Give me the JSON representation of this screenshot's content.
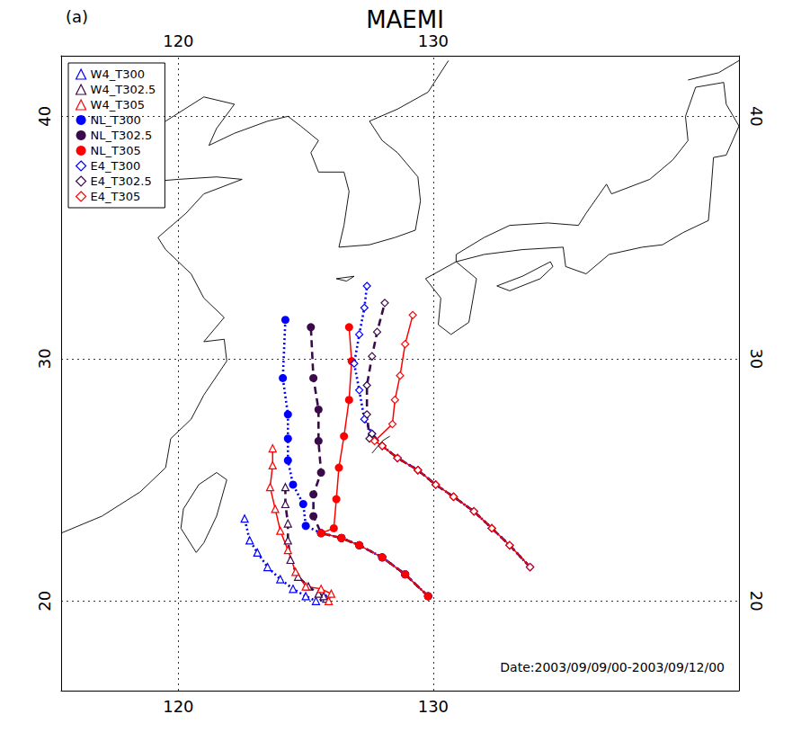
{
  "chart_data": {
    "type": "line",
    "title": "MAEMI",
    "subtitle": "(a)",
    "annotation": "Date:2003/09/09/00-2003/09/12/00",
    "xlim": [
      115.4,
      142
    ],
    "ylim": [
      16.3,
      42.5
    ],
    "xticks": [
      120,
      130
    ],
    "yticks": [
      20,
      30,
      40
    ],
    "grid": true,
    "legend": "upper left",
    "coastlines": [
      [
        [
          120.1,
          23.0
        ],
        [
          120.7,
          22.0
        ],
        [
          121.0,
          22.4
        ],
        [
          121.5,
          23.5
        ],
        [
          121.9,
          25.0
        ],
        [
          121.5,
          25.3
        ],
        [
          120.8,
          24.8
        ],
        [
          120.2,
          23.8
        ],
        [
          120.1,
          23.0
        ]
      ],
      [
        [
          115.4,
          22.8
        ],
        [
          117.0,
          23.5
        ],
        [
          118.5,
          24.5
        ],
        [
          119.5,
          25.5
        ],
        [
          119.7,
          26.7
        ],
        [
          120.5,
          27.5
        ],
        [
          121.0,
          28.5
        ],
        [
          121.9,
          29.9
        ],
        [
          121.8,
          30.8
        ],
        [
          121.0,
          30.7
        ],
        [
          121.8,
          31.7
        ],
        [
          121.0,
          32.5
        ],
        [
          120.5,
          33.5
        ],
        [
          119.5,
          34.5
        ],
        [
          119.2,
          35.0
        ],
        [
          120.3,
          36.0
        ],
        [
          121.0,
          36.8
        ],
        [
          122.5,
          37.4
        ],
        [
          121.5,
          37.5
        ],
        [
          120.0,
          37.4
        ],
        [
          118.8,
          37.3
        ],
        [
          118.0,
          38.2
        ],
        [
          117.5,
          38.8
        ],
        [
          118.5,
          39.2
        ],
        [
          119.5,
          39.8
        ],
        [
          121.0,
          40.8
        ],
        [
          122.2,
          40.5
        ],
        [
          121.5,
          39.5
        ],
        [
          121.2,
          38.8
        ],
        [
          122.2,
          39.3
        ],
        [
          123.5,
          39.8
        ],
        [
          124.3,
          40.0
        ]
      ],
      [
        [
          124.3,
          40.0
        ],
        [
          124.8,
          39.6
        ],
        [
          125.5,
          39.0
        ],
        [
          125.2,
          38.5
        ],
        [
          125.5,
          37.7
        ],
        [
          126.5,
          37.7
        ],
        [
          126.7,
          36.9
        ],
        [
          126.5,
          35.5
        ],
        [
          126.3,
          34.6
        ],
        [
          127.5,
          34.7
        ],
        [
          128.5,
          35.0
        ],
        [
          129.3,
          35.3
        ],
        [
          129.5,
          36.5
        ],
        [
          129.4,
          37.5
        ],
        [
          128.6,
          38.5
        ],
        [
          128.0,
          39.0
        ],
        [
          127.5,
          39.8
        ],
        [
          128.6,
          40.3
        ],
        [
          129.8,
          41.0
        ],
        [
          130.6,
          42.3
        ]
      ],
      [
        [
          126.2,
          33.3
        ],
        [
          126.9,
          33.4
        ],
        [
          126.6,
          33.2
        ],
        [
          126.2,
          33.3
        ]
      ],
      [
        [
          129.7,
          33.3
        ],
        [
          130.9,
          34.0
        ],
        [
          131.7,
          33.3
        ],
        [
          131.4,
          31.5
        ],
        [
          130.7,
          31.0
        ],
        [
          130.2,
          31.4
        ],
        [
          130.3,
          32.5
        ],
        [
          129.7,
          33.3
        ]
      ],
      [
        [
          132.5,
          33.0
        ],
        [
          133.5,
          33.4
        ],
        [
          134.6,
          34.0
        ],
        [
          134.7,
          33.8
        ],
        [
          134.2,
          33.3
        ],
        [
          133.0,
          32.8
        ],
        [
          132.5,
          33.0
        ]
      ],
      [
        [
          130.9,
          34.0
        ],
        [
          132.0,
          34.3
        ],
        [
          133.5,
          34.5
        ],
        [
          135.1,
          34.6
        ],
        [
          135.2,
          33.8
        ],
        [
          136.0,
          33.5
        ],
        [
          136.9,
          34.3
        ],
        [
          138.2,
          34.6
        ],
        [
          139.0,
          34.7
        ],
        [
          139.8,
          35.2
        ],
        [
          140.8,
          35.7
        ],
        [
          140.9,
          36.9
        ],
        [
          141.0,
          38.3
        ],
        [
          141.5,
          38.4
        ],
        [
          142.0,
          39.6
        ],
        [
          141.5,
          40.5
        ],
        [
          141.4,
          41.4
        ],
        [
          140.3,
          41.2
        ],
        [
          139.9,
          40.0
        ],
        [
          140.0,
          39.0
        ],
        [
          139.4,
          38.2
        ],
        [
          138.5,
          37.4
        ],
        [
          137.0,
          36.8
        ],
        [
          136.8,
          37.2
        ],
        [
          136.0,
          36.0
        ],
        [
          135.7,
          35.5
        ],
        [
          134.5,
          35.6
        ],
        [
          133.0,
          35.5
        ],
        [
          132.0,
          35.0
        ],
        [
          130.9,
          34.3
        ],
        [
          130.9,
          34.0
        ]
      ],
      [
        [
          140.0,
          41.5
        ],
        [
          141.2,
          41.8
        ],
        [
          142.0,
          42.3
        ]
      ],
      [
        [
          127.6,
          26.1
        ],
        [
          128.0,
          26.6
        ],
        [
          128.3,
          26.8
        ]
      ]
    ],
    "series": [
      {
        "name": "W4_T300",
        "color": "#0000ff",
        "marker": "open_triangle",
        "line_style": "dotted",
        "x": [
          125.8,
          125.4,
          125.0,
          124.5,
          124.0,
          123.5,
          123.1,
          122.8,
          122.6
        ],
        "values": [
          20.1,
          20.0,
          20.2,
          20.5,
          20.9,
          21.4,
          22.0,
          22.5,
          23.4
        ]
      },
      {
        "name": "W4_T302.5",
        "color": "#3a0a4a",
        "marker": "open_triangle",
        "line_style": "dashed",
        "x": [
          125.7,
          125.5,
          125.1,
          124.7,
          124.4,
          124.3,
          124.3,
          124.2,
          124.2
        ],
        "values": [
          20.2,
          20.3,
          20.6,
          21.0,
          21.7,
          22.5,
          23.2,
          24.0,
          24.7
        ]
      },
      {
        "name": "W4_T305",
        "color": "#ff0000",
        "marker": "open_triangle",
        "line_style": "solid",
        "x": [
          125.9,
          126.0,
          125.6,
          125.0,
          124.6,
          124.3,
          124.0,
          123.8,
          123.6,
          123.7,
          123.7
        ],
        "values": [
          20.0,
          20.3,
          20.5,
          20.6,
          21.2,
          22.1,
          22.9,
          23.8,
          24.7,
          25.6,
          26.3
        ]
      },
      {
        "name": "NL_T300",
        "color": "#0000ff",
        "marker": "filled_circle",
        "line_style": "dotted",
        "x": [
          129.8,
          128.9,
          128.0,
          127.1,
          126.4,
          125.6,
          125.0,
          124.9,
          124.5,
          124.3,
          124.3,
          124.3,
          124.1,
          124.2
        ],
        "values": [
          20.2,
          21.1,
          21.8,
          22.3,
          22.6,
          22.8,
          23.1,
          24.0,
          24.8,
          25.8,
          26.7,
          27.7,
          29.2,
          31.6
        ]
      },
      {
        "name": "NL_T302.5",
        "color": "#3a0a4a",
        "marker": "filled_circle",
        "line_style": "dashed",
        "x": [
          129.8,
          128.9,
          128.0,
          127.1,
          126.4,
          125.6,
          125.3,
          125.3,
          125.6,
          125.5,
          125.5,
          125.3,
          125.2
        ],
        "values": [
          20.2,
          21.1,
          21.8,
          22.3,
          22.6,
          22.8,
          23.5,
          24.4,
          25.3,
          26.6,
          27.9,
          29.2,
          31.3
        ]
      },
      {
        "name": "NL_T305",
        "color": "#ff0000",
        "marker": "filled_circle",
        "line_style": "solid",
        "x": [
          129.8,
          128.9,
          128.0,
          127.1,
          126.4,
          125.6,
          126.1,
          126.2,
          126.3,
          126.5,
          126.7,
          126.8,
          126.7
        ],
        "values": [
          20.2,
          21.1,
          21.8,
          22.3,
          22.6,
          22.8,
          23.0,
          24.2,
          25.5,
          26.8,
          28.3,
          29.9,
          31.3
        ]
      },
      {
        "name": "E4_T300",
        "color": "#0000ff",
        "marker": "open_diamond",
        "line_style": "dotted",
        "x": [
          133.8,
          133.0,
          132.3,
          131.6,
          130.8,
          130.1,
          129.4,
          128.6,
          128.0,
          127.6,
          127.3,
          127.1,
          126.9,
          127.1,
          127.3,
          127.4
        ],
        "values": [
          21.4,
          22.3,
          23.0,
          23.7,
          24.3,
          24.8,
          25.4,
          25.9,
          26.4,
          26.9,
          27.5,
          28.7,
          29.8,
          31.0,
          32.1,
          33.0
        ]
      },
      {
        "name": "E4_T302.5",
        "color": "#3a0a4a",
        "marker": "open_diamond",
        "line_style": "dashed",
        "x": [
          133.8,
          133.0,
          132.3,
          131.6,
          130.8,
          130.1,
          129.4,
          128.6,
          128.0,
          127.6,
          127.5,
          127.4,
          127.4,
          127.6,
          127.8,
          128.1
        ],
        "values": [
          21.4,
          22.3,
          23.0,
          23.7,
          24.3,
          24.8,
          25.4,
          25.9,
          26.4,
          26.9,
          26.7,
          27.7,
          28.9,
          30.1,
          31.1,
          32.3
        ]
      },
      {
        "name": "E4_T305",
        "color": "#ff0000",
        "marker": "open_diamond",
        "line_style": "solid",
        "x": [
          133.8,
          133.0,
          132.3,
          131.6,
          130.8,
          130.1,
          129.4,
          128.6,
          128.0,
          127.7,
          128.4,
          128.5,
          128.7,
          128.9,
          129.2
        ],
        "values": [
          21.4,
          22.3,
          23.0,
          23.7,
          24.3,
          24.8,
          25.4,
          25.9,
          26.4,
          26.6,
          27.3,
          28.3,
          29.3,
          30.6,
          31.8
        ]
      }
    ]
  }
}
